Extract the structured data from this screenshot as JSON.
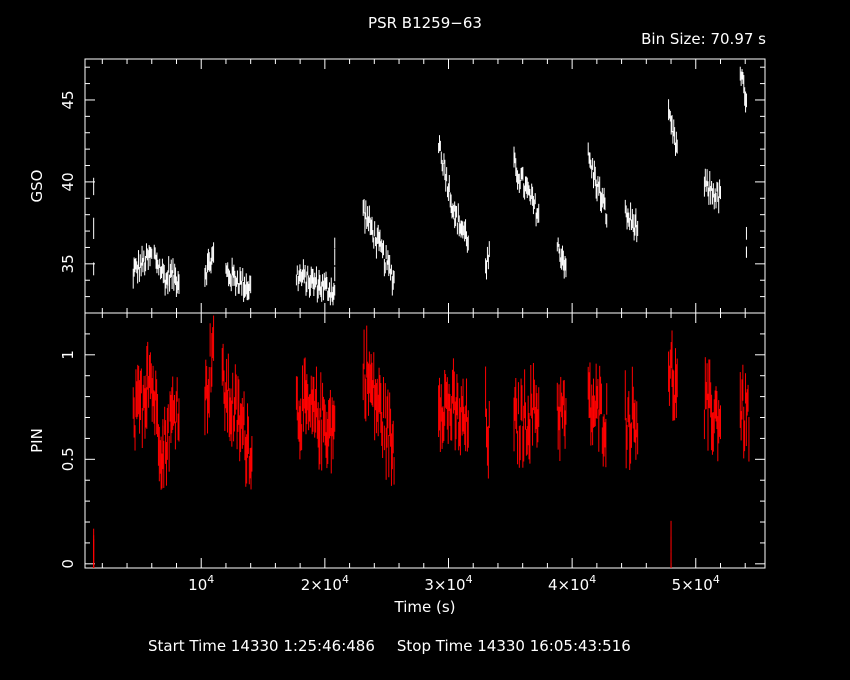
{
  "title": "PSR B1259−63",
  "bin_size_label": "Bin Size:  70.97  s",
  "footer": {
    "start": "Start Time 14330  1:25:46:486",
    "stop": "Stop Time 14330 16:05:43:516"
  },
  "colors": {
    "background": "#000000",
    "axes": "#ffffff",
    "gso": "#ffffff",
    "pin": "#ff0000"
  },
  "chart_data": [
    {
      "type": "scatter",
      "panel": "top",
      "title": "PSR B1259−63",
      "xlabel": "",
      "ylabel": "GSO",
      "xlim": [
        600,
        55600
      ],
      "ylim": [
        32,
        47.5
      ],
      "yticks": [
        35,
        40,
        45
      ],
      "error_bars": true,
      "series": [
        {
          "segments": [
            {
              "x": [
                1300,
                1300
              ],
              "y": [
                34.5,
                39.5
              ]
            },
            {
              "x": [
                4500,
                6000
              ],
              "y": [
                34.5,
                35.5
              ]
            },
            {
              "x": [
                6200,
                7300
              ],
              "y": [
                35.5,
                33.8
              ]
            },
            {
              "x": [
                7300,
                8200
              ],
              "y": [
                34.5,
                34.0
              ]
            },
            {
              "x": [
                10300,
                11000
              ],
              "y": [
                34.5,
                35.5
              ]
            },
            {
              "x": [
                12000,
                14000
              ],
              "y": [
                34.5,
                33.5
              ]
            },
            {
              "x": [
                17700,
                20800
              ],
              "y": [
                34.3,
                33.3
              ]
            },
            {
              "x": [
                20800,
                20800
              ],
              "y": [
                34.0,
                36.5
              ]
            },
            {
              "x": [
                23100,
                25600
              ],
              "y": [
                38.3,
                34.0
              ]
            },
            {
              "x": [
                29200,
                30500
              ],
              "y": [
                42.5,
                38.0
              ]
            },
            {
              "x": [
                30500,
                31600
              ],
              "y": [
                38.0,
                36.5
              ]
            },
            {
              "x": [
                33000,
                33300
              ],
              "y": [
                34.5,
                35.5
              ]
            },
            {
              "x": [
                35300,
                37300
              ],
              "y": [
                41.0,
                38.0
              ]
            },
            {
              "x": [
                38800,
                39500
              ],
              "y": [
                36.0,
                35.0
              ]
            },
            {
              "x": [
                41300,
                42800
              ],
              "y": [
                41.5,
                38.0
              ]
            },
            {
              "x": [
                44300,
                45300
              ],
              "y": [
                38.0,
                37.2
              ]
            },
            {
              "x": [
                47800,
                48500
              ],
              "y": [
                43.8,
                42.0
              ]
            },
            {
              "x": [
                50700,
                52000
              ],
              "y": [
                39.8,
                39.0
              ]
            },
            {
              "x": [
                53600,
                54100
              ],
              "y": [
                46.8,
                44.5
              ]
            },
            {
              "x": [
                54100,
                54100
              ],
              "y": [
                36.0,
                36.5
              ]
            }
          ]
        }
      ]
    },
    {
      "type": "scatter",
      "panel": "bottom",
      "xlabel": "Time (s)",
      "ylabel": "PIN",
      "xlim": [
        600,
        55600
      ],
      "ylim": [
        -0.02,
        1.2
      ],
      "yticks": [
        0,
        0.5,
        1
      ],
      "xticks": [
        10000,
        20000,
        30000,
        40000,
        50000
      ],
      "xtick_labels": [
        {
          "base": "10",
          "exp": "4"
        },
        {
          "base": "2×10",
          "exp": "4"
        },
        {
          "base": "3×10",
          "exp": "4"
        },
        {
          "base": "4×10",
          "exp": "4"
        },
        {
          "base": "5×10",
          "exp": "4"
        }
      ],
      "error_bars": true,
      "series": [
        {
          "segments": [
            {
              "x": [
                1300,
                1300
              ],
              "y": [
                -0.01,
                0.0
              ]
            },
            {
              "x": [
                4500,
                5600
              ],
              "y": [
                0.65,
                0.85
              ]
            },
            {
              "x": [
                5600,
                6900
              ],
              "y": [
                1.0,
                0.55
              ]
            },
            {
              "x": [
                6900,
                8200
              ],
              "y": [
                0.55,
                0.8
              ]
            },
            {
              "x": [
                10300,
                11000
              ],
              "y": [
                0.75,
                1.1
              ]
            },
            {
              "x": [
                11700,
                14100
              ],
              "y": [
                0.85,
                0.55
              ]
            },
            {
              "x": [
                17700,
                20800
              ],
              "y": [
                0.75,
                0.65
              ]
            },
            {
              "x": [
                23100,
                25600
              ],
              "y": [
                0.95,
                0.55
              ]
            },
            {
              "x": [
                29200,
                31600
              ],
              "y": [
                0.8,
                0.65
              ]
            },
            {
              "x": [
                33000,
                33300
              ],
              "y": [
                0.7,
                0.6
              ]
            },
            {
              "x": [
                35300,
                37300
              ],
              "y": [
                0.65,
                0.75
              ]
            },
            {
              "x": [
                38800,
                39500
              ],
              "y": [
                0.75,
                0.7
              ]
            },
            {
              "x": [
                41300,
                42800
              ],
              "y": [
                0.75,
                0.7
              ]
            },
            {
              "x": [
                44300,
                45300
              ],
              "y": [
                0.7,
                0.7
              ]
            },
            {
              "x": [
                47800,
                48500
              ],
              "y": [
                0.95,
                0.8
              ]
            },
            {
              "x": [
                50700,
                52000
              ],
              "y": [
                0.75,
                0.7
              ]
            },
            {
              "x": [
                53600,
                54300
              ],
              "y": [
                0.75,
                0.7
              ]
            },
            {
              "x": [
                48000,
                48000
              ],
              "y": [
                -0.01,
                0.0
              ]
            }
          ]
        }
      ]
    }
  ]
}
